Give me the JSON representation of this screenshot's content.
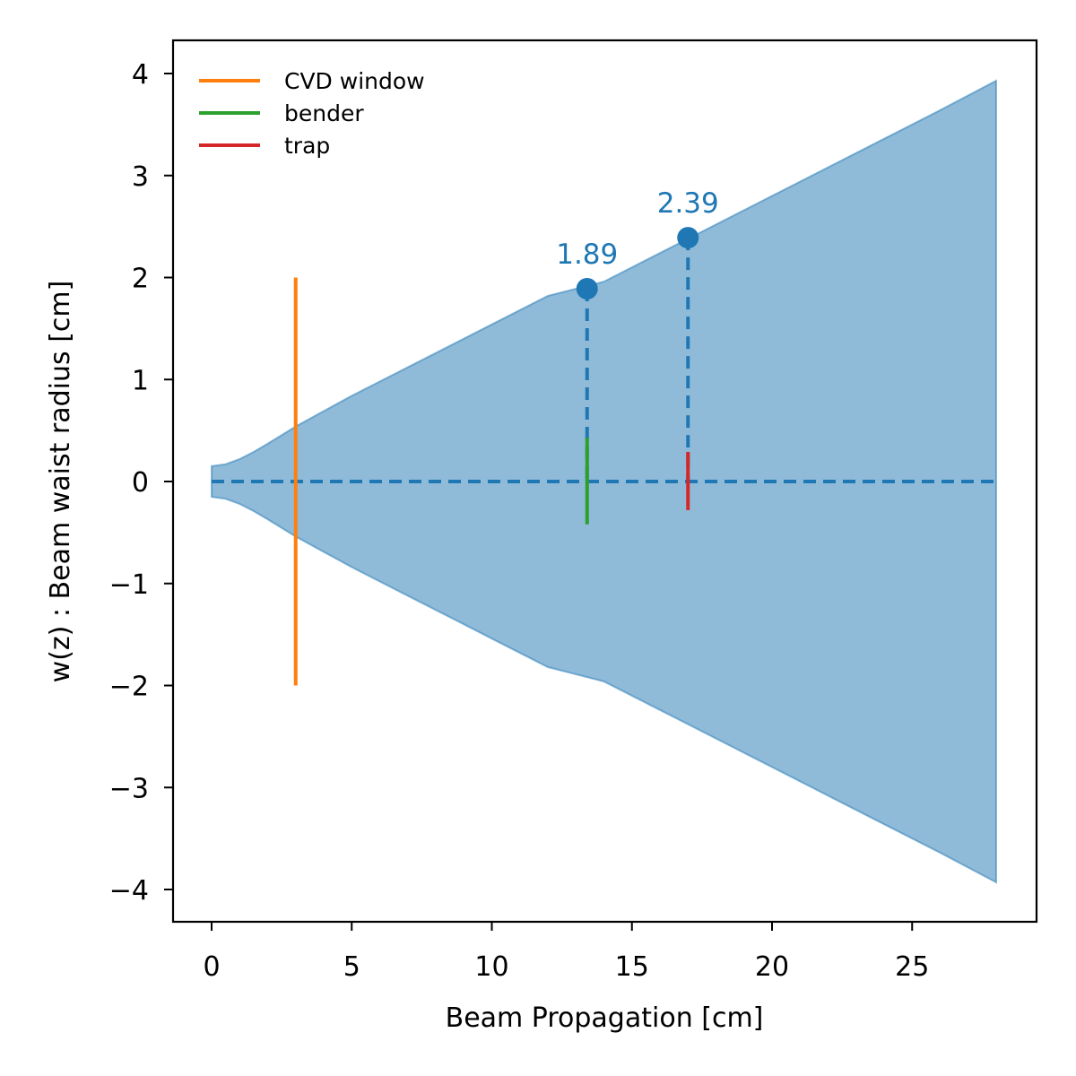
{
  "chart_data": {
    "type": "area",
    "title": "",
    "xlabel": "Beam Propagation [cm]",
    "ylabel": "w(z) : Beam waist radius [cm]",
    "xlim": [
      -1.4,
      29.4
    ],
    "ylim": [
      -4.33,
      4.33
    ],
    "xticks": [
      0,
      5,
      10,
      15,
      20,
      25
    ],
    "yticks": [
      -4,
      -3,
      -2,
      -1,
      0,
      1,
      2,
      3,
      4
    ],
    "grid": false,
    "legend": {
      "placement": "top-left",
      "entries": [
        {
          "label": "CVD window",
          "color": "#ff7f0e"
        },
        {
          "label": "bender",
          "color": "#2ca02c"
        },
        {
          "label": "trap",
          "color": "#d62728"
        }
      ]
    },
    "beam_envelope": {
      "color": "#1f77b4",
      "opacity": 0.5,
      "x": [
        0,
        0.5,
        1,
        1.5,
        2,
        3,
        4,
        5,
        6,
        8,
        10,
        12,
        14,
        16,
        18,
        20,
        22,
        24,
        26,
        28
      ],
      "upper": [
        0.15,
        0.17,
        0.22,
        0.29,
        0.37,
        0.54,
        0.69,
        0.84,
        0.98,
        1.26,
        1.54,
        1.82,
        1.96,
        2.24,
        2.52,
        2.8,
        3.08,
        3.36,
        3.64,
        3.93
      ]
    },
    "axis_line": {
      "y": 0,
      "x_range": [
        0,
        28
      ],
      "color": "#1f77b4",
      "style": "dashed"
    },
    "elements": [
      {
        "label": "CVD window",
        "x": 3.0,
        "y_range": [
          -2.0,
          2.0
        ],
        "color": "#ff7f0e"
      },
      {
        "label": "bender",
        "x": 13.4,
        "y_range": [
          -0.42,
          0.43
        ],
        "color": "#2ca02c"
      },
      {
        "label": "trap",
        "x": 17.0,
        "y_range": [
          -0.28,
          0.29
        ],
        "color": "#d62728"
      }
    ],
    "points": [
      {
        "x": 13.4,
        "y": 1.89,
        "label": "1.89",
        "color": "#1f77b4"
      },
      {
        "x": 17.0,
        "y": 2.39,
        "label": "2.39",
        "color": "#1f77b4"
      }
    ]
  }
}
